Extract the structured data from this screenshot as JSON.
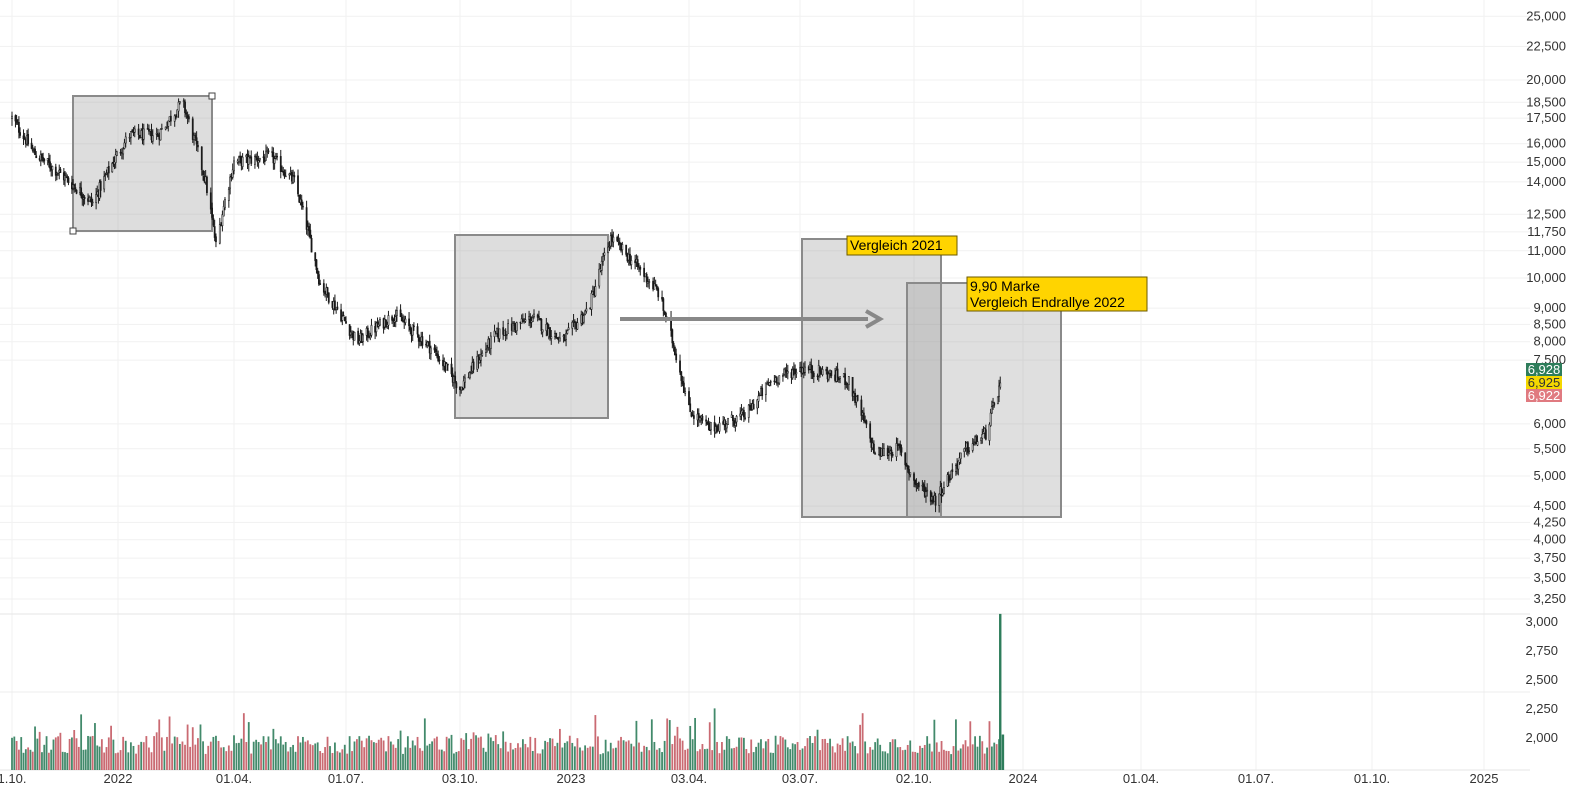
{
  "chart_data": {
    "type": "candlestick-with-volume",
    "x_labels": [
      "1.10.",
      "2022",
      "01.04.",
      "01.07.",
      "03.10.",
      "2023",
      "03.04.",
      "03.07.",
      "02.10.",
      "2024",
      "01.04.",
      "01.07.",
      "01.10.",
      "2025"
    ],
    "price_axis_ticks": [
      "25,000",
      "22,500",
      "20,000",
      "18,500",
      "17,500",
      "16,000",
      "15,000",
      "14,000",
      "12,500",
      "11,750",
      "11,000",
      "10,000",
      "9,000",
      "8,500",
      "8,000",
      "7,500",
      "6,000",
      "5,500",
      "5,000",
      "4,500",
      "4,250",
      "4,000",
      "3,750",
      "3,500",
      "3,250"
    ],
    "price_axis_values": [
      25,
      22.5,
      20,
      18.5,
      17.5,
      16,
      15,
      14,
      12.5,
      11.75,
      11,
      10,
      9,
      8.5,
      8,
      7.5,
      6,
      5.5,
      5,
      4.5,
      4.25,
      4,
      3.75,
      3.5,
      3.25
    ],
    "volume_axis_ticks": [
      "3,000",
      "2,750",
      "2,500",
      "2,250",
      "2,000"
    ],
    "last_price_badges": [
      {
        "label": "6,928",
        "color": "#2e7d5b"
      },
      {
        "label": "6,925",
        "color": "#f5d800"
      },
      {
        "label": "6,922",
        "color": "#e07a80"
      }
    ],
    "price_path": [
      [
        "2021-10-01",
        17.5
      ],
      [
        "2021-10-20",
        15.5
      ],
      [
        "2021-11-10",
        14.5
      ],
      [
        "2021-12-10",
        13.0
      ],
      [
        "2022-01-10",
        16.5
      ],
      [
        "2022-02-01",
        16.5
      ],
      [
        "2022-02-20",
        18.5
      ],
      [
        "2022-03-10",
        14.0
      ],
      [
        "2022-03-18",
        11.2
      ],
      [
        "2022-04-01",
        15.0
      ],
      [
        "2022-05-01",
        15.3
      ],
      [
        "2022-05-20",
        14.0
      ],
      [
        "2022-06-10",
        9.8
      ],
      [
        "2022-07-10",
        8.0
      ],
      [
        "2022-08-10",
        8.8
      ],
      [
        "2022-09-10",
        7.8
      ],
      [
        "2022-10-03",
        6.8
      ],
      [
        "2022-11-01",
        8.2
      ],
      [
        "2022-12-01",
        8.7
      ],
      [
        "2022-12-25",
        8.0
      ],
      [
        "2023-01-15",
        9.0
      ],
      [
        "2023-02-01",
        11.5
      ],
      [
        "2023-02-20",
        10.5
      ],
      [
        "2023-03-10",
        9.5
      ],
      [
        "2023-04-03",
        6.3
      ],
      [
        "2023-04-20",
        5.9
      ],
      [
        "2023-05-20",
        6.2
      ],
      [
        "2023-06-10",
        7.0
      ],
      [
        "2023-07-03",
        7.3
      ],
      [
        "2023-07-20",
        7.2
      ],
      [
        "2023-08-10",
        7.0
      ],
      [
        "2023-09-01",
        5.4
      ],
      [
        "2023-09-20",
        5.5
      ],
      [
        "2023-10-02",
        4.9
      ],
      [
        "2023-10-20",
        4.6
      ],
      [
        "2023-11-15",
        5.5
      ],
      [
        "2023-12-01",
        5.8
      ],
      [
        "2023-12-10",
        6.6
      ],
      [
        "2023-12-13",
        6.925
      ]
    ],
    "volume_last_spike": 3.07,
    "annotations": {
      "label_2021": "Vergleich 2021",
      "label_marke_line1": "9,90 Marke",
      "label_marke_line2": "Vergleich Endrallye 2022"
    }
  }
}
